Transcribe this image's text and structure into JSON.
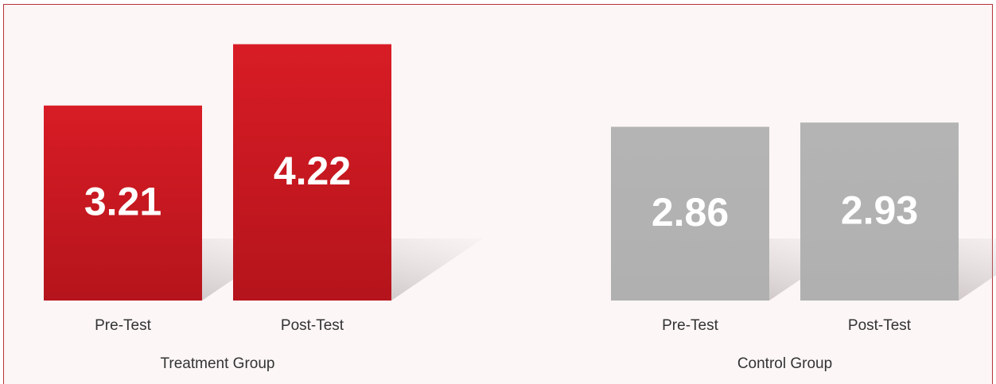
{
  "chart_data": {
    "type": "bar",
    "groups": [
      {
        "name": "Treatment Group",
        "color": "#cc1a22",
        "categories": [
          "Pre-Test",
          "Post-Test"
        ],
        "values": [
          3.21,
          4.22
        ]
      },
      {
        "name": "Control Group",
        "color": "#b3b3b3",
        "categories": [
          "Pre-Test",
          "Post-Test"
        ],
        "values": [
          2.86,
          2.93
        ]
      }
    ]
  }
}
